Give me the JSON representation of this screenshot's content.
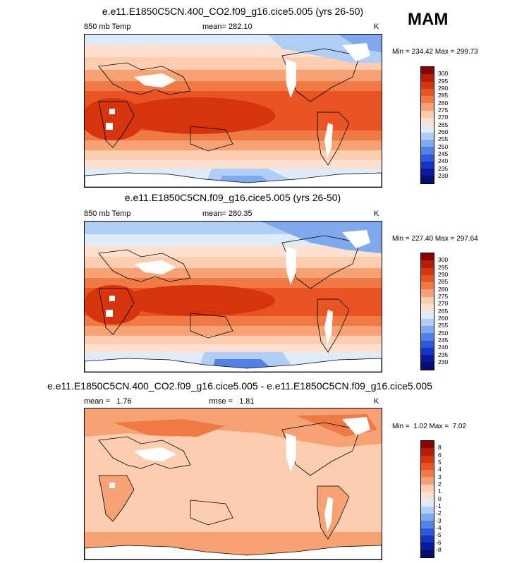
{
  "season": "MAM",
  "panels": [
    {
      "title": "e.e11.E1850C5CN.400_CO2.f09_g16.cice5.005 (yrs 26-50)",
      "variable": "850 mb Temp",
      "stat": "mean= 282.10",
      "units": "K",
      "minmax": "Min = 234.42 Max = 299.73",
      "legend_labels": [
        "300",
        "295",
        "290",
        "285",
        "280",
        "275",
        "270",
        "265",
        "260",
        "255",
        "250",
        "245",
        "240",
        "235",
        "230"
      ]
    },
    {
      "title": "e.e11.E1850C5CN.f09_g16.cice5.005 (yrs 26-50)",
      "variable": "850 mb Temp",
      "stat": "mean= 280.35",
      "units": "K",
      "minmax": "Min = 227.40 Max = 297.64",
      "legend_labels": [
        "300",
        "295",
        "290",
        "285",
        "280",
        "275",
        "270",
        "265",
        "260",
        "255",
        "250",
        "245",
        "240",
        "235",
        "230"
      ]
    },
    {
      "title": "e.e11.E1850C5CN.400_CO2.f09_g16.cice5.005 - e.e11.E1850C5CN.f09_g16.cice5.005",
      "stat": "mean =   1.76",
      "stat2": "rmse =   1.81",
      "units": "K",
      "minmax": "Min =  1.02 Max =  7.02",
      "legend_labels": [
        "8",
        "6",
        "5",
        "4",
        "3",
        "2",
        "1",
        "0",
        "-1",
        "-2",
        "-3",
        "-4",
        "-5",
        "-6",
        "-8"
      ]
    }
  ],
  "colors": {
    "scale": [
      "#8b0000",
      "#b71c07",
      "#d6340c",
      "#e85424",
      "#f07a45",
      "#f7a272",
      "#fdcdb0",
      "#fde0cf",
      "#deebfa",
      "#b0cdf5",
      "#7fa9ee",
      "#5282e6",
      "#2d59dc",
      "#1434c4",
      "#0a1a9c",
      "#050f70"
    ]
  }
}
